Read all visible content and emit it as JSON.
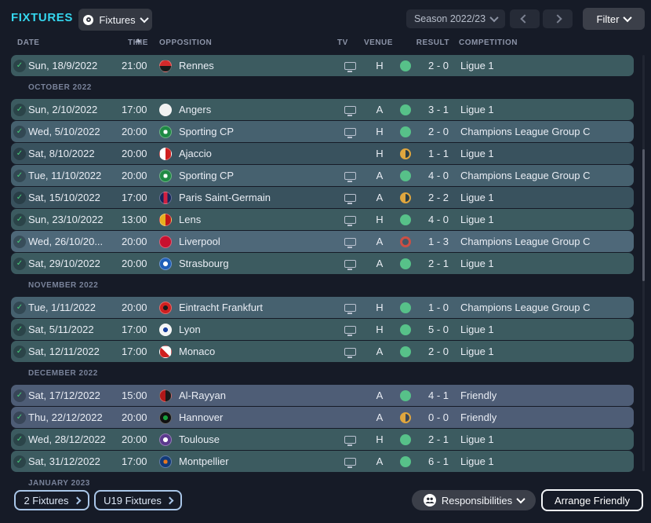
{
  "titlebar": {
    "title": "FIXTURES",
    "view_selector": "Fixtures",
    "season_selector": "Season 2022/23",
    "filter_label": "Filter"
  },
  "table_header": {
    "date": "DATE",
    "time": "TIME",
    "opposition": "OPPOSITION",
    "tv": "TV",
    "venue": "VENUE",
    "result": "RESULT",
    "competition": "COMPETITION",
    "sort_column": "DATE",
    "sort_direction": "ascending"
  },
  "fixtures": {
    "groups": [
      {
        "month": "",
        "rows": [
          {
            "date": "Sun, 18/9/2022",
            "time": "21:00",
            "team": "Rennes",
            "tv": true,
            "venue": "H",
            "outcome": "win",
            "score": "2 - 0",
            "competition": "Ligue 1",
            "tone": "l1",
            "badge": "linear-gradient(180deg,#d42a2a 50%,#1a1a1a 50%)"
          }
        ]
      },
      {
        "month": "OCTOBER 2022",
        "rows": [
          {
            "date": "Sun, 2/10/2022",
            "time": "17:00",
            "team": "Angers",
            "tv": true,
            "venue": "A",
            "outcome": "win",
            "score": "3 - 1",
            "competition": "Ligue 1",
            "tone": "l1",
            "badge": "#f2f2f2"
          },
          {
            "date": "Wed, 5/10/2022",
            "time": "20:00",
            "team": "Sporting CP",
            "tv": true,
            "venue": "H",
            "outcome": "win",
            "score": "2 - 0",
            "competition": "Champions League Group C",
            "tone": "cl",
            "badge": "radial-gradient(circle,#ffffff 26%,#1f8a44 27%)"
          },
          {
            "date": "Sat, 8/10/2022",
            "time": "20:00",
            "team": "Ajaccio",
            "tv": false,
            "venue": "H",
            "outcome": "draw",
            "score": "1 - 1",
            "competition": "Ligue 1",
            "tone": "l1d",
            "badge": "linear-gradient(90deg,#ffffff 50%,#d02020 50%)"
          },
          {
            "date": "Tue, 11/10/2022",
            "time": "20:00",
            "team": "Sporting CP",
            "tv": true,
            "venue": "A",
            "outcome": "win",
            "score": "4 - 0",
            "competition": "Champions League Group C",
            "tone": "cl",
            "badge": "radial-gradient(circle,#ffffff 26%,#1f8a44 27%)"
          },
          {
            "date": "Sat, 15/10/2022",
            "time": "17:00",
            "team": "Paris Saint-Germain",
            "tv": true,
            "venue": "A",
            "outcome": "draw",
            "score": "2 - 2",
            "competition": "Ligue 1",
            "tone": "l1d",
            "badge": "linear-gradient(90deg,#14255c 32%,#d02040 32%,#d02040 68%,#14255c 68%)"
          },
          {
            "date": "Sun, 23/10/2022",
            "time": "13:00",
            "team": "Lens",
            "tv": true,
            "venue": "H",
            "outcome": "win",
            "score": "4 - 0",
            "competition": "Ligue 1",
            "tone": "l1",
            "badge": "linear-gradient(90deg,#e8b020 50%,#c01818 50%)"
          },
          {
            "date": "Wed, 26/10/20...",
            "time": "20:00",
            "team": "Liverpool",
            "tv": true,
            "venue": "A",
            "outcome": "loss",
            "score": "1 - 3",
            "competition": "Champions League Group C",
            "tone": "cll",
            "badge": "#c8102e"
          },
          {
            "date": "Sat, 29/10/2022",
            "time": "20:00",
            "team": "Strasbourg",
            "tv": true,
            "venue": "A",
            "outcome": "win",
            "score": "2 - 1",
            "competition": "Ligue 1",
            "tone": "l1",
            "badge": "radial-gradient(circle,#ffffff 30%,#1f5fb8 31%)"
          }
        ]
      },
      {
        "month": "NOVEMBER 2022",
        "rows": [
          {
            "date": "Tue, 1/11/2022",
            "time": "20:00",
            "team": "Eintracht Frankfurt",
            "tv": true,
            "venue": "H",
            "outcome": "win",
            "score": "1 - 0",
            "competition": "Champions League Group C",
            "tone": "cl",
            "badge": "radial-gradient(circle,#1a1a1a 30%,#d02020 31%)"
          },
          {
            "date": "Sat, 5/11/2022",
            "time": "17:00",
            "team": "Lyon",
            "tv": true,
            "venue": "H",
            "outcome": "win",
            "score": "5 - 0",
            "competition": "Ligue 1",
            "tone": "l1",
            "badge": "radial-gradient(circle,#1a3f9e 30%,#f4f4f4 31%)"
          },
          {
            "date": "Sat, 12/11/2022",
            "time": "17:00",
            "team": "Monaco",
            "tv": true,
            "venue": "A",
            "outcome": "win",
            "score": "2 - 0",
            "competition": "Ligue 1",
            "tone": "l1",
            "badge": "linear-gradient(45deg,#d02020 50%,#ffffff 50%)"
          }
        ]
      },
      {
        "month": "DECEMBER 2022",
        "rows": [
          {
            "date": "Sat, 17/12/2022",
            "time": "15:00",
            "team": "Al-Rayyan",
            "tv": false,
            "venue": "A",
            "outcome": "win",
            "score": "4 - 1",
            "competition": "Friendly",
            "tone": "fr",
            "badge": "linear-gradient(90deg,#b01818 50%,#1a1a1a 50%)"
          },
          {
            "date": "Thu, 22/12/2022",
            "time": "20:00",
            "team": "Hannover",
            "tv": false,
            "venue": "A",
            "outcome": "draw",
            "score": "0 - 0",
            "competition": "Friendly",
            "tone": "fr",
            "badge": "radial-gradient(circle,#18a03c 30%,#111111 31%)"
          },
          {
            "date": "Wed, 28/12/2022",
            "time": "20:00",
            "team": "Toulouse",
            "tv": true,
            "venue": "H",
            "outcome": "win",
            "score": "2 - 1",
            "competition": "Ligue 1",
            "tone": "l1",
            "badge": "radial-gradient(circle,#ffffff 30%,#5c3a8e 31%)"
          },
          {
            "date": "Sat, 31/12/2022",
            "time": "17:00",
            "team": "Montpellier",
            "tv": true,
            "venue": "A",
            "outcome": "win",
            "score": "6 - 1",
            "competition": "Ligue 1",
            "tone": "l1",
            "badge": "radial-gradient(circle,#e87820 26%,#123a7a 27%)"
          }
        ]
      },
      {
        "month": "JANUARY 2023",
        "rows": []
      }
    ]
  },
  "footer": {
    "fixtures_button": "2 Fixtures",
    "u19_button": "U19 Fixtures",
    "responsibilities_button": "Responsibilities",
    "arrange_friendly_button": "Arrange Friendly"
  },
  "colors": {
    "accent": "#35d6ee",
    "win": "#57c189",
    "draw": "#dfa63e",
    "loss": "#cb4f45",
    "row_ligue1": "#3c5b60",
    "row_ligue1_draw": "#39525e",
    "row_champions_league": "#46616f",
    "row_champions_league_light": "#4e6879",
    "row_friendly": "#4e5d76",
    "background": "#161b27"
  }
}
